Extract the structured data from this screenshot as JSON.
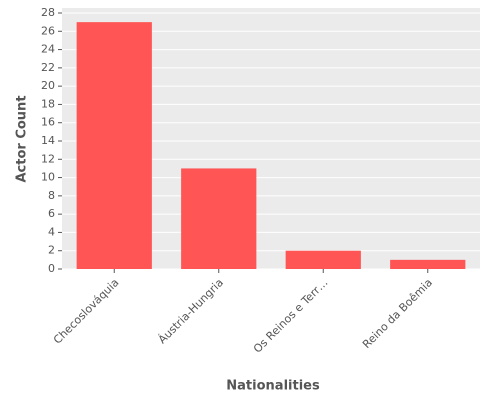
{
  "chart_data": {
    "type": "bar",
    "x_label": "Nationalities",
    "y_label": "Actor Count",
    "categories": [
      "Checoslováquia",
      "Áustria-Hungria",
      "Os Reinos e Terr…",
      "Reino da Boêmia"
    ],
    "values": [
      27,
      11,
      2,
      1
    ],
    "color": "#ff5555",
    "ylim": [
      0,
      28
    ],
    "yticks": [
      0,
      2,
      4,
      6,
      8,
      10,
      12,
      14,
      16,
      18,
      20,
      22,
      24,
      26,
      28
    ],
    "grid": true
  }
}
